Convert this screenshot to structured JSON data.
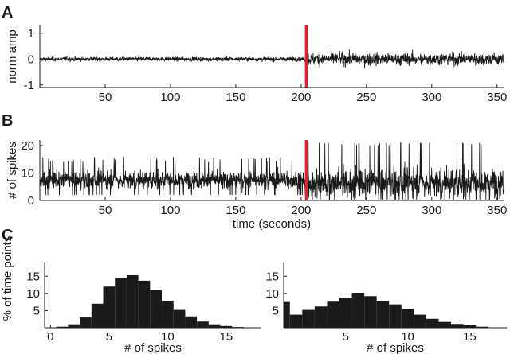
{
  "chart_data": [
    {
      "panel": "A",
      "type": "line",
      "xlabel": "",
      "ylabel": "norm amp",
      "xlim": [
        0,
        355
      ],
      "ylim": [
        -1.1,
        1.3
      ],
      "xticks": [
        50,
        100,
        150,
        200,
        250,
        300,
        350
      ],
      "yticks": [
        -1,
        0,
        1
      ],
      "series_color": "#1a1a1a",
      "marker": {
        "x": 204,
        "color": "#e0202a"
      },
      "segments": [
        {
          "x_range": [
            0,
            204
          ],
          "typical_amplitude": 0.15,
          "peak_amplitude": 0.3
        },
        {
          "x_range": [
            204,
            355
          ],
          "typical_amplitude": 0.45,
          "peak_amplitude": 0.95
        }
      ]
    },
    {
      "panel": "B",
      "type": "line",
      "xlabel": "time (seconds)",
      "ylabel": "# of spikes",
      "xlim": [
        0,
        355
      ],
      "ylim": [
        0,
        22
      ],
      "xticks": [
        50,
        100,
        150,
        200,
        250,
        300,
        350
      ],
      "yticks": [
        0,
        10,
        20
      ],
      "series_color": "#1a1a1a",
      "marker": {
        "x": 204,
        "color": "#e0202a"
      },
      "segments": [
        {
          "x_range": [
            0,
            204
          ],
          "mean": 7.5,
          "typical_min": 2,
          "typical_max": 14
        },
        {
          "x_range": [
            204,
            355
          ],
          "mean": 6.5,
          "typical_min": 0,
          "typical_max": 20
        }
      ]
    },
    {
      "panel": "C-left",
      "type": "bar",
      "xlabel": "# of spikes",
      "ylabel": "% of time points",
      "xlim": [
        -0.5,
        18
      ],
      "ylim": [
        0,
        19
      ],
      "xticks": [
        0,
        5,
        10,
        15
      ],
      "yticks": [
        5,
        10,
        15
      ],
      "categories": [
        0,
        1,
        2,
        3,
        4,
        5,
        6,
        7,
        8,
        9,
        10,
        11,
        12,
        13,
        14,
        15,
        16,
        17
      ],
      "values": [
        0.1,
        0.3,
        1.0,
        3.0,
        7.0,
        12.0,
        14.5,
        15.3,
        13.7,
        11.0,
        7.8,
        5.2,
        3.3,
        1.8,
        1.0,
        0.5,
        0.2,
        0.05
      ]
    },
    {
      "panel": "C-right",
      "type": "bar",
      "xlabel": "# of spikes",
      "ylabel": "",
      "xlim": [
        0,
        18
      ],
      "ylim": [
        0,
        19
      ],
      "xticks": [
        5,
        10,
        15
      ],
      "yticks": [
        5,
        10,
        15
      ],
      "categories": [
        0,
        1,
        2,
        3,
        4,
        5,
        6,
        7,
        8,
        9,
        10,
        11,
        12,
        13,
        14,
        15,
        16,
        17
      ],
      "values": [
        7.5,
        3.8,
        5.2,
        6.2,
        7.6,
        8.8,
        10.2,
        9.2,
        7.8,
        6.8,
        5.4,
        3.8,
        2.6,
        1.7,
        1.1,
        0.7,
        0.3,
        0.1
      ]
    }
  ],
  "labels": {
    "panel_a": "A",
    "panel_b": "B",
    "panel_c": "C"
  }
}
